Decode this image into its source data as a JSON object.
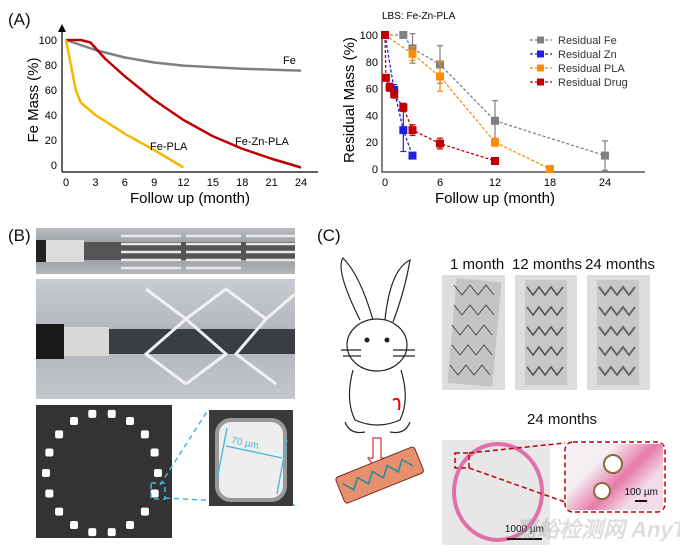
{
  "panels": {
    "a": "(A)",
    "b": "(B)",
    "c": "(C)"
  },
  "chart_data": [
    {
      "type": "line",
      "ylabel": "Fe Mass (%)",
      "xlabel": "Follow up (month)",
      "xticks": [
        0,
        3,
        6,
        9,
        12,
        15,
        18,
        21,
        24
      ],
      "yticks": [
        0,
        20,
        40,
        60,
        80,
        100
      ],
      "xlim": [
        0,
        24
      ],
      "ylim": [
        0,
        100
      ],
      "series": [
        {
          "name": "Fe",
          "color": "#808080",
          "x": [
            0,
            3,
            6,
            9,
            12,
            18,
            24
          ],
          "y": [
            100,
            92,
            86,
            82,
            79.5,
            77,
            75.5
          ]
        },
        {
          "name": "Fe-Zn-PLA",
          "color": "#c00000",
          "x": [
            0,
            1.5,
            2.5,
            4,
            6,
            9,
            12,
            15,
            18,
            21,
            24
          ],
          "y": [
            100,
            100,
            98,
            85,
            71,
            52,
            36,
            23,
            13,
            5,
            -2
          ]
        },
        {
          "name": "Fe-PLA",
          "color": "#f5b800",
          "x": [
            0,
            0.5,
            1,
            1.5,
            3,
            6,
            9,
            12
          ],
          "y": [
            100,
            80,
            60,
            50,
            40,
            25,
            12,
            -2
          ]
        }
      ]
    },
    {
      "type": "scatter",
      "title": "LBS: Fe-Zn-PLA",
      "ylabel": "Residual Mass (%)",
      "xlabel": "Follow up (month)",
      "xticks": [
        0,
        6,
        12,
        18,
        24
      ],
      "yticks": [
        0,
        20,
        40,
        60,
        80,
        100
      ],
      "xlim": [
        0,
        28
      ],
      "ylim": [
        0,
        100
      ],
      "legend": "top-right",
      "series": [
        {
          "name": "Residual Fe",
          "color": "#808080",
          "x": [
            0,
            2,
            3,
            6,
            12,
            24
          ],
          "y": [
            100,
            100,
            90,
            78,
            36,
            10
          ],
          "err": [
            0,
            0,
            11,
            14,
            15,
            11
          ]
        },
        {
          "name": "Residual Zn",
          "color": "#1f1fe0",
          "x": [
            0,
            1,
            2,
            3
          ],
          "y": [
            100,
            59,
            29,
            10
          ],
          "err": [
            0,
            4,
            16,
            1
          ]
        },
        {
          "name": "Residual PLA",
          "color": "#ff8c00",
          "x": [
            0,
            3,
            6,
            12,
            18
          ],
          "y": [
            100,
            86,
            69,
            20,
            0
          ],
          "err": [
            0,
            5,
            11,
            3,
            0
          ]
        },
        {
          "name": "Residual Drug",
          "color": "#c00000",
          "x": [
            0,
            0.1,
            0.5,
            1,
            2,
            3,
            6,
            12
          ],
          "y": [
            100,
            68,
            61,
            56,
            46,
            29,
            19,
            6
          ],
          "err": [
            0,
            2,
            3,
            3,
            3,
            4,
            4,
            2
          ]
        }
      ]
    }
  ],
  "panel_b": {
    "measure": "70 µm"
  },
  "panel_c": {
    "stent_labels": [
      "1 month",
      "12 months",
      "24 months"
    ],
    "histology_title": "24 months",
    "scale_large": "1000 µm",
    "scale_small": "100 µm",
    "watermark": "嘉峪检测网 AnyTesting.com"
  }
}
